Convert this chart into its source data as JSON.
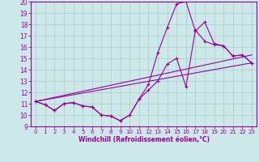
{
  "xlabel": "Windchill (Refroidissement éolien,°C)",
  "bg_color": "#cce8e8",
  "line_color": "#990099",
  "grid_color": "#aacccc",
  "xlim": [
    -0.5,
    23.5
  ],
  "ylim": [
    9,
    20
  ],
  "yticks": [
    9,
    10,
    11,
    12,
    13,
    14,
    15,
    16,
    17,
    18,
    19,
    20
  ],
  "xticks": [
    0,
    1,
    2,
    3,
    4,
    5,
    6,
    7,
    8,
    9,
    10,
    11,
    12,
    13,
    14,
    15,
    16,
    17,
    18,
    19,
    20,
    21,
    22,
    23
  ],
  "line1_x": [
    0,
    1,
    2,
    3,
    4,
    5,
    6,
    7,
    8,
    9,
    10,
    11,
    12,
    13,
    14,
    15,
    16,
    17,
    18,
    19,
    20,
    21,
    22,
    23
  ],
  "line1_y": [
    11.2,
    10.9,
    10.4,
    11.0,
    11.1,
    10.8,
    10.7,
    10.0,
    9.9,
    9.5,
    10.0,
    11.4,
    12.2,
    13.0,
    14.5,
    15.0,
    12.5,
    17.5,
    16.5,
    16.2,
    16.1,
    15.2,
    15.3,
    14.6
  ],
  "line2_x": [
    0,
    1,
    2,
    3,
    4,
    5,
    6,
    7,
    8,
    9,
    10,
    11,
    12,
    13,
    14,
    15,
    16,
    17,
    18,
    19,
    20,
    21,
    22,
    23
  ],
  "line2_y": [
    11.2,
    10.9,
    10.4,
    11.0,
    11.1,
    10.8,
    10.7,
    10.0,
    9.9,
    9.5,
    10.0,
    11.4,
    12.7,
    15.5,
    17.7,
    19.8,
    20.0,
    17.4,
    18.2,
    16.3,
    16.1,
    15.2,
    15.3,
    14.6
  ],
  "line3_x": [
    0,
    23
  ],
  "line3_y": [
    11.2,
    14.6
  ],
  "line4_x": [
    0,
    23
  ],
  "line4_y": [
    11.2,
    15.3
  ]
}
